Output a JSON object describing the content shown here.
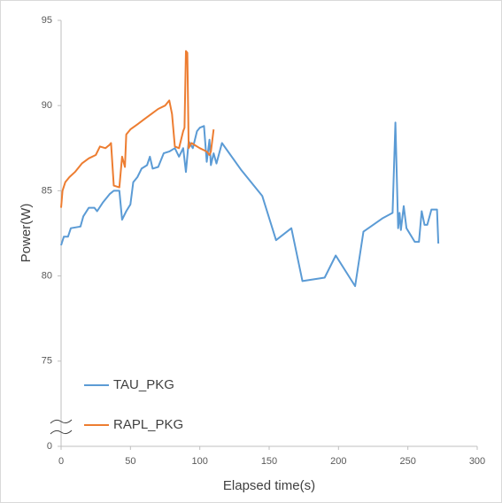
{
  "chart_data": {
    "type": "line",
    "x_label": "Elapsed time(s)",
    "y_label": "Power(W)",
    "xlim": [
      0,
      300
    ],
    "xticks": [
      0,
      50,
      100,
      150,
      200,
      250,
      300
    ],
    "ylim": [
      0,
      95
    ],
    "yticks": [
      0,
      75,
      80,
      85,
      90,
      95
    ],
    "axis_break": {
      "from": 0,
      "to": 70
    },
    "legend": "lower left",
    "grid": false,
    "series": [
      {
        "name": "TAU_PKG",
        "color": "#5b9bd5",
        "x": [
          0,
          2,
          5,
          7,
          14,
          16,
          20,
          24,
          26,
          30,
          35,
          38,
          42,
          44,
          47,
          50,
          52,
          55,
          58,
          62,
          64,
          66,
          70,
          74,
          78,
          82,
          85,
          88,
          90,
          92,
          95,
          98,
          100,
          103,
          105,
          107,
          108,
          110,
          112,
          116,
          130,
          145,
          155,
          166,
          174,
          190,
          198,
          212,
          218,
          232,
          239,
          241,
          243,
          244,
          245,
          247,
          249,
          255,
          258,
          260,
          262,
          264,
          267,
          271,
          272
        ],
        "values": [
          81.8,
          82.3,
          82.3,
          82.8,
          82.9,
          83.5,
          84.0,
          84.0,
          83.8,
          84.3,
          84.8,
          85.0,
          85.0,
          83.3,
          83.8,
          84.2,
          85.5,
          85.8,
          86.3,
          86.5,
          87.0,
          86.3,
          86.4,
          87.2,
          87.3,
          87.5,
          87.0,
          87.5,
          86.1,
          87.9,
          87.5,
          88.5,
          88.7,
          88.8,
          86.7,
          88.0,
          86.5,
          87.2,
          86.6,
          87.8,
          86.2,
          84.7,
          82.1,
          82.8,
          79.7,
          79.9,
          81.2,
          79.4,
          82.6,
          83.4,
          83.7,
          89.0,
          82.8,
          83.7,
          82.7,
          84.1,
          82.8,
          82.0,
          82.0,
          83.8,
          83.0,
          83.0,
          83.9,
          83.9,
          81.9
        ]
      },
      {
        "name": "RAPL_PKG",
        "color": "#ed7d31",
        "x": [
          0,
          1,
          3,
          6,
          10,
          15,
          20,
          25,
          28,
          32,
          35,
          36,
          38,
          42,
          44,
          46,
          47,
          50,
          55,
          60,
          65,
          70,
          75,
          78,
          80,
          82,
          85,
          88,
          89,
          90,
          91,
          92,
          94,
          96,
          100,
          105,
          107,
          108,
          110
        ],
        "values": [
          84.0,
          85.0,
          85.5,
          85.8,
          86.1,
          86.6,
          86.9,
          87.1,
          87.6,
          87.5,
          87.7,
          87.8,
          85.3,
          85.2,
          87.0,
          86.4,
          88.3,
          88.6,
          88.9,
          89.2,
          89.5,
          89.8,
          90.0,
          90.3,
          89.5,
          87.6,
          87.5,
          88.5,
          88.7,
          93.2,
          93.1,
          87.5,
          87.8,
          87.7,
          87.5,
          87.3,
          87.1,
          87.3,
          88.6
        ]
      }
    ]
  }
}
